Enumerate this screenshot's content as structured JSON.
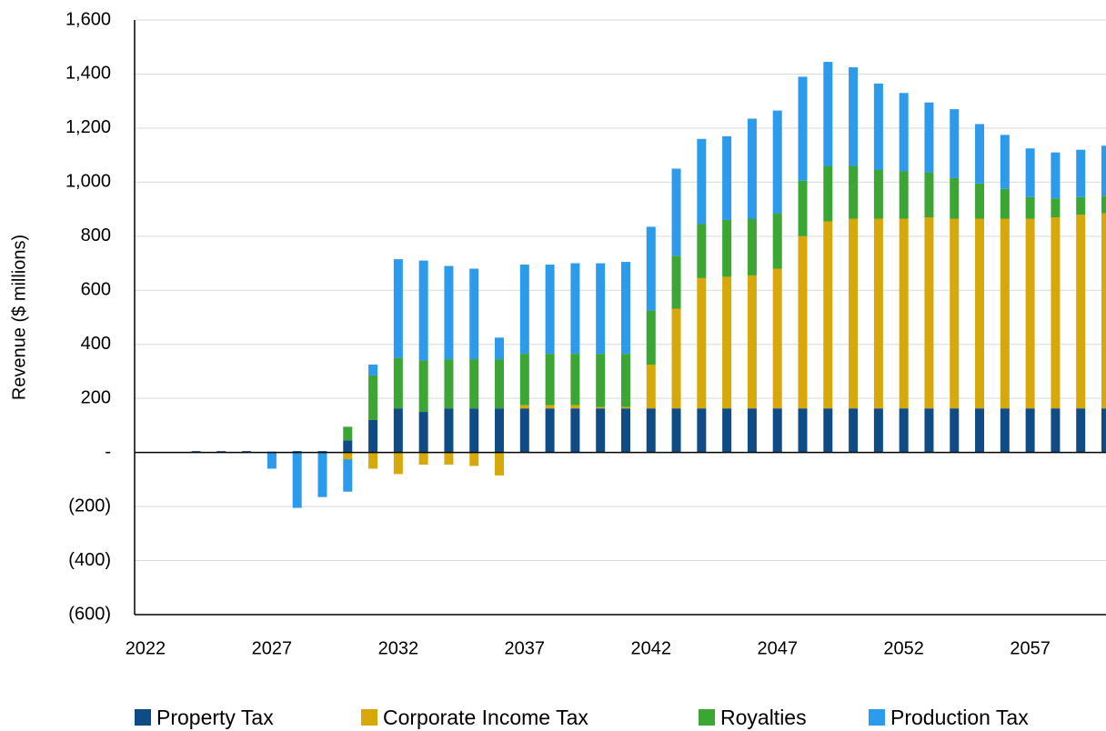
{
  "chart_data": {
    "type": "stacked_bar",
    "y_label": "Revenue ($ millions)",
    "x": [
      2022,
      2023,
      2024,
      2025,
      2026,
      2027,
      2028,
      2029,
      2030,
      2031,
      2032,
      2033,
      2034,
      2035,
      2036,
      2037,
      2038,
      2039,
      2040,
      2041,
      2042,
      2043,
      2044,
      2045,
      2046,
      2047,
      2048,
      2049,
      2050,
      2051,
      2052,
      2053,
      2054,
      2055,
      2056,
      2057,
      2058,
      2059,
      2060
    ],
    "xlim": [
      2021.57,
      2060.0
    ],
    "xticks": [
      2022,
      2027,
      2032,
      2037,
      2042,
      2047,
      2052,
      2057
    ],
    "ylim": [
      -600,
      1600
    ],
    "yticks": [
      {
        "value": -600,
        "label": "(600)"
      },
      {
        "value": -400,
        "label": "(400)"
      },
      {
        "value": -200,
        "label": "(200)"
      },
      {
        "value": 0,
        "label": "-"
      },
      200,
      400,
      600,
      800,
      {
        "value": 1000,
        "label": "1,000"
      },
      {
        "value": 1200,
        "label": "1,200"
      },
      {
        "value": 1400,
        "label": "1,400"
      },
      {
        "value": 1600,
        "label": "1,600"
      }
    ],
    "grid": true,
    "legend": "bottom",
    "series": [
      {
        "name": "Property Tax",
        "color": "#0f4c86",
        "values": [
          0,
          0,
          5,
          5,
          5,
          3,
          5,
          5,
          45,
          120,
          163,
          150,
          163,
          163,
          163,
          163,
          163,
          163,
          163,
          163,
          163,
          163,
          163,
          163,
          163,
          163,
          163,
          163,
          163,
          163,
          163,
          163,
          163,
          163,
          163,
          163,
          163,
          163,
          163
        ]
      },
      {
        "name": "Corporate Income Tax",
        "color": "#d6a80a",
        "values": [
          0,
          0,
          0,
          0,
          0,
          0,
          0,
          0,
          -25,
          -60,
          -80,
          -45,
          -45,
          -50,
          -85,
          12,
          12,
          12,
          5,
          5,
          162,
          369,
          482,
          487,
          492,
          517,
          637,
          692,
          702,
          702,
          702,
          707,
          702,
          702,
          702,
          702,
          707,
          717,
          722
        ]
      },
      {
        "name": "Royalties",
        "color": "#3ba634",
        "values": [
          0,
          0,
          0,
          0,
          0,
          0,
          0,
          0,
          50,
          165,
          187,
          190,
          182,
          182,
          182,
          190,
          190,
          190,
          197,
          197,
          200,
          196,
          200,
          210,
          210,
          205,
          205,
          205,
          195,
          180,
          175,
          165,
          150,
          130,
          110,
          80,
          70,
          65,
          65
        ]
      },
      {
        "name": "Production Tax",
        "color": "#2d9bec",
        "values": [
          0,
          0,
          0,
          0,
          0,
          -60,
          -205,
          -165,
          -120,
          40,
          365,
          370,
          345,
          335,
          80,
          330,
          330,
          335,
          335,
          340,
          310,
          322,
          315,
          310,
          370,
          380,
          385,
          385,
          365,
          320,
          290,
          260,
          255,
          220,
          200,
          180,
          170,
          175,
          185
        ]
      }
    ]
  }
}
